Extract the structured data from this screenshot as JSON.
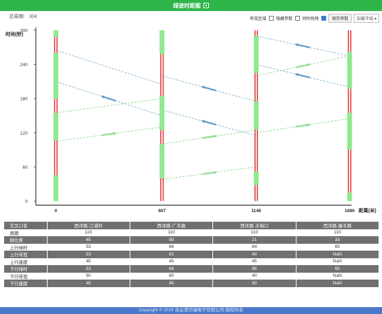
{
  "header": {
    "title": "绿波时距图"
  },
  "cycle": {
    "label": "总周期:",
    "value": "304"
  },
  "controls": {
    "valid_zone_label": "有效区域",
    "hide_params_label": "隐藏参数",
    "sync_drag_label": "同时拖拽",
    "valid_zone_checked": false,
    "hide_params_checked": false,
    "sync_drag_checked": true,
    "save_button": "保存参数",
    "dropdown_value": "加载干线"
  },
  "chart_data": {
    "type": "time-space",
    "ylabel": "时间(秒)",
    "xlabel": "距离(米)",
    "ylim": [
      0,
      300
    ],
    "yticks": [
      0,
      60,
      120,
      180,
      240,
      300
    ],
    "intersections": [
      {
        "position": 0,
        "label": "0",
        "green_windows": [
          [
            0,
            45
          ],
          [
            106,
            155
          ],
          [
            180,
            260
          ],
          [
            288,
            300
          ]
        ]
      },
      {
        "position": 607,
        "label": "607",
        "green_windows": [
          [
            40,
            100
          ],
          [
            125,
            185
          ],
          [
            258,
            300
          ]
        ]
      },
      {
        "position": 1146,
        "label": "1146",
        "green_windows": [
          [
            28,
            52
          ],
          [
            125,
            175
          ],
          [
            225,
            290
          ]
        ]
      },
      {
        "position": 1680,
        "label": "1680",
        "green_windows": [
          [
            0,
            15
          ],
          [
            90,
            155
          ],
          [
            197,
            262
          ]
        ]
      }
    ],
    "upward_band": [
      [
        0,
        105,
        607,
        130
      ],
      [
        0,
        155,
        607,
        180
      ],
      [
        607,
        38,
        1146,
        60
      ],
      [
        607,
        100,
        1146,
        125
      ],
      [
        1146,
        120,
        1680,
        145
      ],
      [
        1146,
        220,
        1680,
        255
      ]
    ],
    "downward_band": [
      [
        0,
        265,
        607,
        205
      ],
      [
        0,
        210,
        607,
        150
      ],
      [
        607,
        160,
        1146,
        115
      ],
      [
        607,
        220,
        1146,
        175
      ],
      [
        1146,
        290,
        1680,
        255
      ],
      [
        1146,
        240,
        1680,
        200
      ]
    ]
  },
  "table": {
    "header": [
      "交叉口名",
      "西洋路·江浦村",
      "西洋路·广丰路",
      "西洋路·丰裕口",
      "西洋路·康丰路"
    ],
    "rows": [
      [
        "周期",
        "110",
        "110",
        "110",
        "110"
      ],
      [
        "相位差",
        "45",
        "90",
        "21",
        "33"
      ],
      [
        "上行绿时",
        "53",
        "66",
        "64",
        "65"
      ],
      [
        "上行带宽",
        "53",
        "61",
        "40",
        "NaN"
      ],
      [
        "上行速度",
        "45",
        "45",
        "45",
        "NaN"
      ],
      [
        "下行绿时",
        "53",
        "66",
        "85",
        "65"
      ],
      [
        "下行带宽",
        "50",
        "60",
        "40",
        "NaN"
      ],
      [
        "下行速度",
        "45",
        "45",
        "50",
        "NaN"
      ]
    ]
  },
  "footer": {
    "text": "Copyright © 2019 连云港杰瑞电子有限公司 版权所有"
  },
  "colors": {
    "header_bg": "#2eb54a",
    "red_phase": "#e03a3a",
    "green_phase": "#90e890",
    "arrow_up": "#8fdc8f",
    "arrow_down": "#5b9bc9",
    "footer_bg": "#4a79c9"
  }
}
